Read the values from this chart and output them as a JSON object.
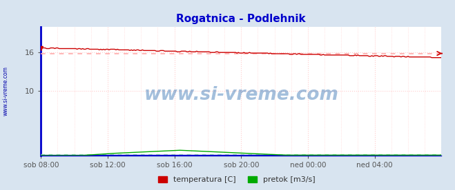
{
  "title": "Rogatnica - Podlehnik",
  "title_color": "#0000cc",
  "title_fontsize": 11,
  "bg_color": "#d8e4f0",
  "plot_bg_color": "#ffffff",
  "watermark": "www.si-vreme.com",
  "watermark_color": "#1a5fa8",
  "temp_color": "#cc0000",
  "flow_color": "#00aa00",
  "height_color": "#0000cc",
  "avg_temp_color": "#ffaaaa",
  "avg_flow_color": "#aaffaa",
  "avg_height_color": "#aaaaff",
  "grid_v_color": "#ffcccc",
  "grid_h_color": "#ffcccc",
  "left_label_color": "#0000aa",
  "left_label": "www.si-vreme.com",
  "spine_color": "#0000cc",
  "xtick_labels": [
    "sob 08:00",
    "sob 12:00",
    "sob 16:00",
    "sob 20:00",
    "ned 00:00",
    "ned 04:00"
  ],
  "ytick_positions": [
    10,
    16
  ],
  "ytick_labels": [
    "10",
    "16"
  ],
  "ylim": [
    0,
    20
  ],
  "xlim": [
    0,
    288
  ],
  "avg_temp": 15.85,
  "avg_flow_scaled": 0.25,
  "avg_height_scaled": 0.18,
  "temp_start": 16.7,
  "temp_end": 15.2,
  "legend_labels": [
    "temperatura [C]",
    "pretok [m3/s]"
  ]
}
